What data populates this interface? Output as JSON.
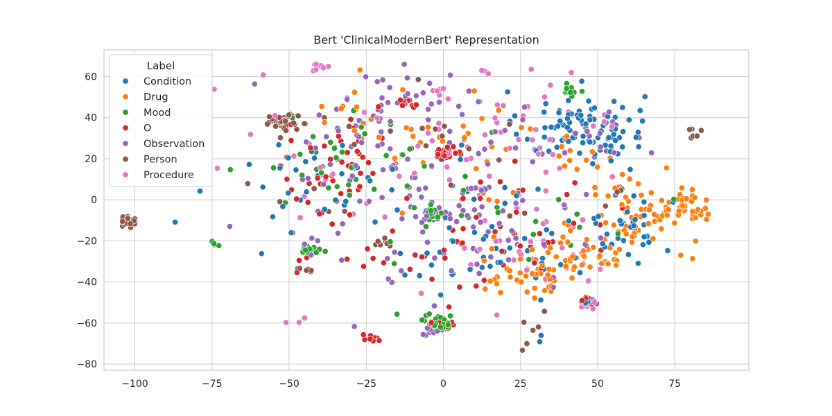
{
  "chart_data": {
    "type": "scatter",
    "title": "Bert 'ClinicalModernBert' Representation",
    "xlabel": "",
    "ylabel": "",
    "xlim": [
      -110,
      99
    ],
    "ylim": [
      -83,
      73
    ],
    "xticks": [
      -100,
      -75,
      -50,
      -25,
      0,
      25,
      50,
      75
    ],
    "yticks": [
      -80,
      -60,
      -40,
      -20,
      0,
      20,
      40,
      60
    ],
    "grid": true,
    "legend": {
      "title": "Label",
      "placement": "top-left"
    },
    "series": [
      {
        "name": "Condition",
        "color": "#1f77b4",
        "clusters": [
          {
            "cx": 45,
            "cy": 35,
            "sx": 10,
            "sy": 9,
            "n": 90
          },
          {
            "cx": 58,
            "cy": -12,
            "sx": 8,
            "sy": 7,
            "n": 30
          },
          {
            "cx": 20,
            "cy": -25,
            "sx": 14,
            "sy": 9,
            "n": 30
          },
          {
            "cx": -45,
            "cy": 10,
            "sx": 12,
            "sy": 14,
            "n": 25
          },
          {
            "cx": 10,
            "cy": 0,
            "sx": 30,
            "sy": 30,
            "n": 30
          },
          {
            "cx": 32,
            "cy": -67,
            "sx": 1,
            "sy": 1,
            "n": 2
          },
          {
            "cx": -87,
            "cy": -10,
            "sx": 0.6,
            "sy": 0.6,
            "n": 1
          },
          {
            "cx": 47,
            "cy": -50,
            "sx": 1.5,
            "sy": 1.5,
            "n": 4
          }
        ]
      },
      {
        "name": "Drug",
        "color": "#ff7f0e",
        "clusters": [
          {
            "cx": 78,
            "cy": -5,
            "sx": 5,
            "sy": 4,
            "n": 45
          },
          {
            "cx": 62,
            "cy": -8,
            "sx": 9,
            "sy": 12,
            "n": 55
          },
          {
            "cx": 40,
            "cy": -30,
            "sx": 10,
            "sy": 8,
            "n": 45
          },
          {
            "cx": 25,
            "cy": -35,
            "sx": 8,
            "sy": 6,
            "n": 30
          },
          {
            "cx": -15,
            "cy": 40,
            "sx": 15,
            "sy": 12,
            "n": 20
          },
          {
            "cx": 10,
            "cy": 20,
            "sx": 15,
            "sy": 15,
            "n": 20
          },
          {
            "cx": 40,
            "cy": 20,
            "sx": 8,
            "sy": 8,
            "n": 15
          }
        ]
      },
      {
        "name": "Mood",
        "color": "#2ca02c",
        "clusters": [
          {
            "cx": -4,
            "cy": -6,
            "sx": 2,
            "sy": 2,
            "n": 25
          },
          {
            "cx": -1,
            "cy": -60,
            "sx": 2.5,
            "sy": 2,
            "n": 30
          },
          {
            "cx": -43,
            "cy": -24,
            "sx": 1.6,
            "sy": 1.2,
            "n": 14
          },
          {
            "cx": 41,
            "cy": 53,
            "sx": 1.5,
            "sy": 1.2,
            "n": 10
          },
          {
            "cx": -74,
            "cy": -22,
            "sx": 1,
            "sy": 1,
            "n": 4
          },
          {
            "cx": -40,
            "cy": 15,
            "sx": 10,
            "sy": 10,
            "n": 20
          },
          {
            "cx": -10,
            "cy": 10,
            "sx": 25,
            "sy": 20,
            "n": 25
          },
          {
            "cx": 40,
            "cy": -10,
            "sx": 12,
            "sy": 10,
            "n": 10
          }
        ]
      },
      {
        "name": "O",
        "color": "#d62728",
        "clusters": [
          {
            "cx": 1,
            "cy": 23,
            "sx": 2.5,
            "sy": 1.5,
            "n": 25
          },
          {
            "cx": -24,
            "cy": -67,
            "sx": 1.5,
            "sy": 1,
            "n": 8
          },
          {
            "cx": -12,
            "cy": 47,
            "sx": 1.5,
            "sy": 1,
            "n": 10
          },
          {
            "cx": 47,
            "cy": -49,
            "sx": 1.5,
            "sy": 1,
            "n": 12
          },
          {
            "cx": -35,
            "cy": 15,
            "sx": 10,
            "sy": 12,
            "n": 40
          },
          {
            "cx": 25,
            "cy": -15,
            "sx": 15,
            "sy": 15,
            "n": 40
          },
          {
            "cx": -20,
            "cy": -20,
            "sx": 15,
            "sy": 15,
            "n": 20
          },
          {
            "cx": 0,
            "cy": -60,
            "sx": 2,
            "sy": 1.5,
            "n": 8
          }
        ]
      },
      {
        "name": "Observation",
        "color": "#9467bd",
        "clusters": [
          {
            "cx": 0,
            "cy": 0,
            "sx": 30,
            "sy": 22,
            "n": 120
          },
          {
            "cx": -20,
            "cy": 45,
            "sx": 20,
            "sy": 10,
            "n": 40
          },
          {
            "cx": 12,
            "cy": 6,
            "sx": 2,
            "sy": 1,
            "n": 8
          },
          {
            "cx": -1,
            "cy": -64,
            "sx": 2.5,
            "sy": 1.2,
            "n": 10
          },
          {
            "cx": -3,
            "cy": -9,
            "sx": 2,
            "sy": 1.5,
            "n": 8
          },
          {
            "cx": 50,
            "cy": 30,
            "sx": 8,
            "sy": 8,
            "n": 15
          }
        ]
      },
      {
        "name": "Person",
        "color": "#8c564b",
        "clusters": [
          {
            "cx": -103,
            "cy": -11,
            "sx": 2,
            "sy": 1.6,
            "n": 25
          },
          {
            "cx": -52,
            "cy": 38,
            "sx": 2.5,
            "sy": 1.6,
            "n": 35
          },
          {
            "cx": -20,
            "cy": -21,
            "sx": 1.5,
            "sy": 1,
            "n": 8
          },
          {
            "cx": -46,
            "cy": -34,
            "sx": 1.5,
            "sy": 1,
            "n": 8
          },
          {
            "cx": 81,
            "cy": 32,
            "sx": 1,
            "sy": 2,
            "n": 6
          },
          {
            "cx": 57,
            "cy": 5,
            "sx": 1,
            "sy": 1,
            "n": 5
          },
          {
            "cx": -10,
            "cy": 10,
            "sx": 30,
            "sy": 25,
            "n": 30
          },
          {
            "cx": 30,
            "cy": -55,
            "sx": 2,
            "sy": 8,
            "n": 6
          }
        ]
      },
      {
        "name": "Procedure",
        "color": "#e377c2",
        "clusters": [
          {
            "cx": -40,
            "cy": 65,
            "sx": 1.5,
            "sy": 1,
            "n": 8
          },
          {
            "cx": 14,
            "cy": 63,
            "sx": 1,
            "sy": 0.6,
            "n": 3
          },
          {
            "cx": 0,
            "cy": 53,
            "sx": 1.5,
            "sy": 1.5,
            "n": 6
          },
          {
            "cx": 47,
            "cy": -51,
            "sx": 1.5,
            "sy": 1,
            "n": 6
          },
          {
            "cx": 25,
            "cy": 30,
            "sx": 15,
            "sy": 15,
            "n": 40
          },
          {
            "cx": -30,
            "cy": 20,
            "sx": 20,
            "sy": 20,
            "n": 30
          },
          {
            "cx": 30,
            "cy": -20,
            "sx": 15,
            "sy": 15,
            "n": 30
          },
          {
            "cx": -47,
            "cy": -59,
            "sx": 2,
            "sy": 0.6,
            "n": 3
          }
        ]
      }
    ]
  }
}
